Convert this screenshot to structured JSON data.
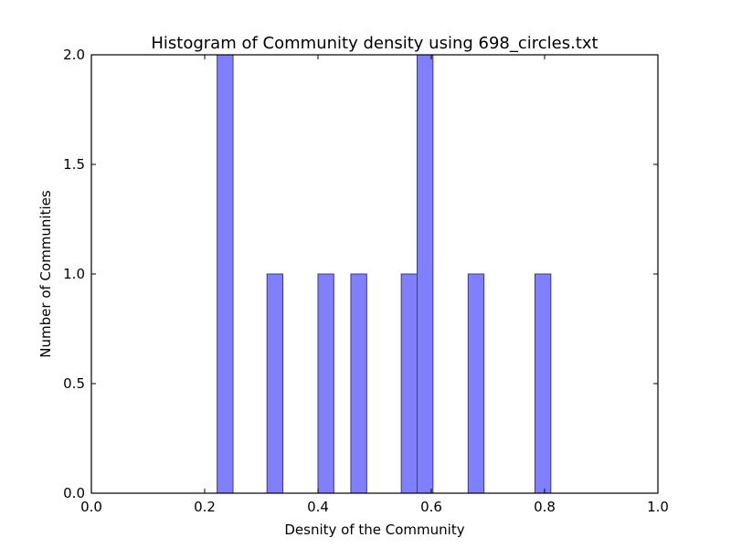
{
  "chart_data": {
    "type": "bar",
    "title": "Histogram of Community density using 698_circles.txt",
    "xlabel": "Desnity of the Community",
    "ylabel": "Number of Communities",
    "xlim": [
      0.0,
      1.0
    ],
    "ylim": [
      0.0,
      2.0
    ],
    "xticks": [
      0.0,
      0.2,
      0.4,
      0.6,
      0.8,
      1.0
    ],
    "xtick_labels": [
      "0.0",
      "0.2",
      "0.4",
      "0.6",
      "0.8",
      "1.0"
    ],
    "yticks": [
      0.0,
      0.5,
      1.0,
      1.5,
      2.0
    ],
    "ytick_labels": [
      "0.0",
      "0.5",
      "1.0",
      "1.5",
      "2.0"
    ],
    "grid": false,
    "bar_color": "#8080ff",
    "bar_edge_color": "#3a3a8a",
    "bins": [
      {
        "start": 0.222,
        "end": 0.25,
        "count": 2
      },
      {
        "start": 0.31,
        "end": 0.338,
        "count": 1
      },
      {
        "start": 0.4,
        "end": 0.428,
        "count": 1
      },
      {
        "start": 0.458,
        "end": 0.486,
        "count": 1
      },
      {
        "start": 0.547,
        "end": 0.575,
        "count": 1
      },
      {
        "start": 0.575,
        "end": 0.603,
        "count": 2
      },
      {
        "start": 0.665,
        "end": 0.693,
        "count": 1
      },
      {
        "start": 0.783,
        "end": 0.811,
        "count": 1
      }
    ]
  }
}
